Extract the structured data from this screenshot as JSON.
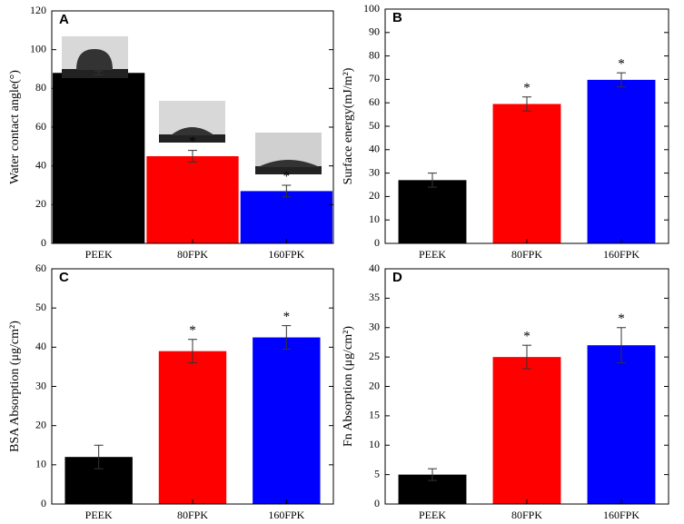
{
  "chart_data": [
    {
      "type": "bar",
      "panel": "A",
      "ylabel": "Water contact angle(°)",
      "categories": [
        "PEEK",
        "80FPK",
        "160FPK"
      ],
      "values": [
        88,
        45,
        27
      ],
      "errors": [
        1,
        3,
        3
      ],
      "significance": [
        null,
        "*",
        "*"
      ],
      "colors": [
        "#000000",
        "#ff0000",
        "#0000ff"
      ],
      "ylim": [
        0,
        120
      ],
      "yticks": [
        0,
        20,
        40,
        60,
        80,
        100,
        120
      ]
    },
    {
      "type": "bar",
      "panel": "B",
      "ylabel": "Surface energy(mJ/m²)",
      "categories": [
        "PEEK",
        "80FPK",
        "160FPK"
      ],
      "values": [
        27,
        59.5,
        69.8
      ],
      "errors": [
        3,
        3,
        3
      ],
      "significance": [
        null,
        "*",
        "*"
      ],
      "colors": [
        "#000000",
        "#ff0000",
        "#0000ff"
      ],
      "ylim": [
        0,
        100
      ],
      "yticks": [
        0,
        10,
        20,
        30,
        40,
        50,
        60,
        70,
        80,
        90,
        100
      ]
    },
    {
      "type": "bar",
      "panel": "C",
      "ylabel": "BSA Absorption (μg/cm²)",
      "categories": [
        "PEEK",
        "80FPK",
        "160FPK"
      ],
      "values": [
        12,
        39,
        42.5
      ],
      "errors": [
        3,
        3,
        3
      ],
      "significance": [
        null,
        "*",
        "*"
      ],
      "colors": [
        "#000000",
        "#ff0000",
        "#0000ff"
      ],
      "ylim": [
        0,
        60
      ],
      "yticks": [
        0,
        10,
        20,
        30,
        40,
        50,
        60
      ]
    },
    {
      "type": "bar",
      "panel": "D",
      "ylabel": "Fn Absorption (μg/cm²)",
      "categories": [
        "PEEK",
        "80FPK",
        "160FPK"
      ],
      "values": [
        5,
        25,
        27
      ],
      "errors": [
        1,
        2,
        3
      ],
      "significance": [
        null,
        "*",
        "*"
      ],
      "colors": [
        "#000000",
        "#ff0000",
        "#0000ff"
      ],
      "ylim": [
        0,
        40
      ],
      "yticks": [
        0,
        5,
        10,
        15,
        20,
        25,
        30,
        35,
        40
      ]
    }
  ]
}
